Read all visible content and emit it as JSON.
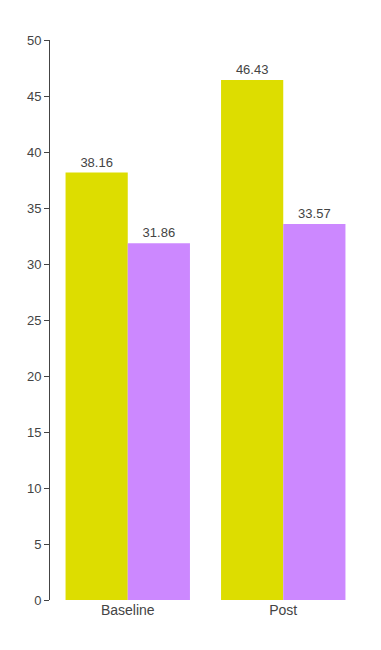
{
  "chart_data": {
    "type": "bar",
    "categories": [
      "Baseline",
      "Post"
    ],
    "series": [
      {
        "color": "#DDDD00",
        "values": [
          38.16,
          46.43
        ]
      },
      {
        "color": "#CC88FF",
        "values": [
          31.86,
          33.57
        ]
      }
    ],
    "ylim": [
      0,
      50
    ],
    "yticks": [
      0,
      5,
      10,
      15,
      20,
      25,
      30,
      35,
      40,
      45,
      50
    ],
    "grid": false,
    "data_labels": true
  }
}
